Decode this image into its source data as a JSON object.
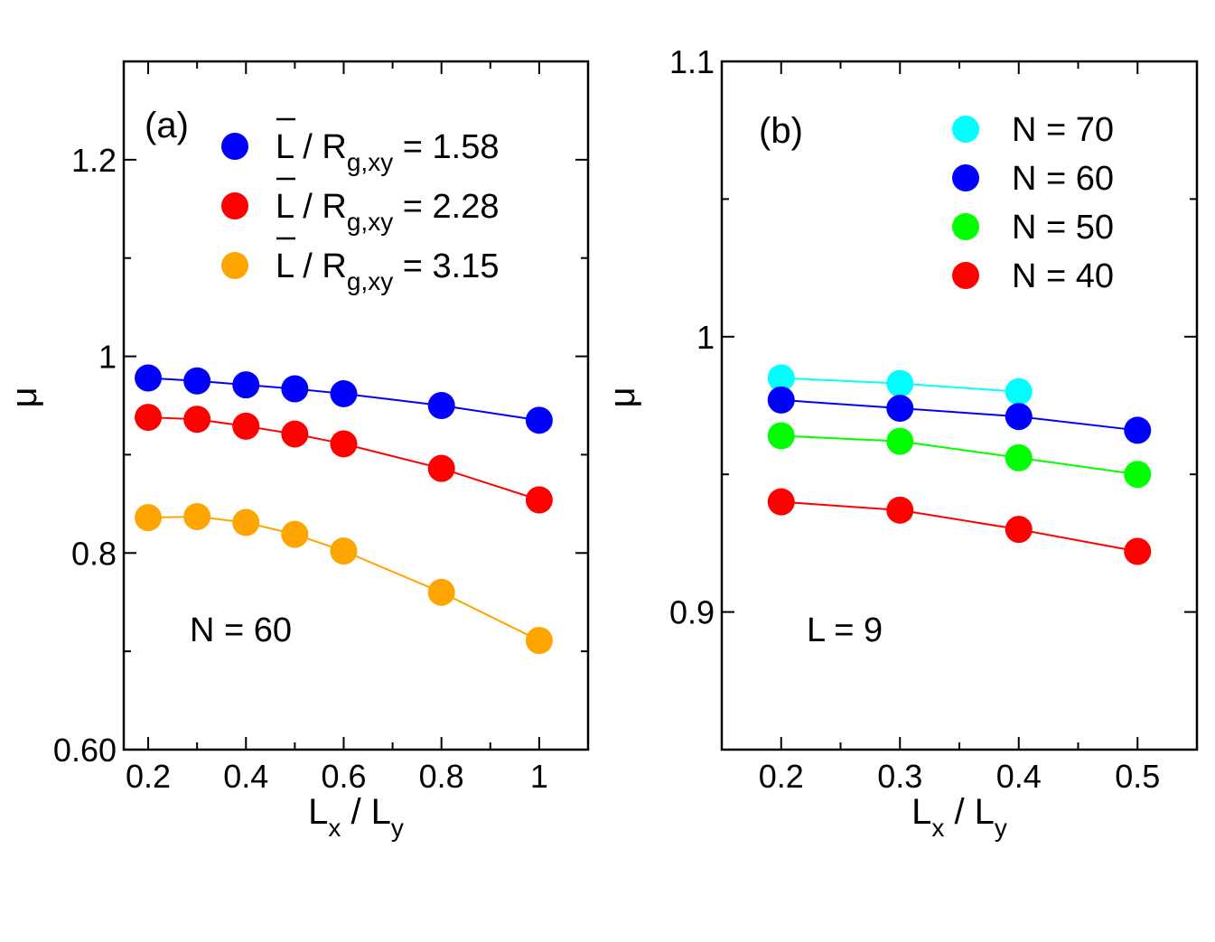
{
  "chart_data": [
    {
      "type": "line",
      "panel_label": "(a)",
      "annotation": "N = 60",
      "xlabel": {
        "main": "L",
        "sub1": "x",
        "sep": " / L",
        "sub2": "y"
      },
      "ylabel": "μ",
      "xlim": [
        0.15,
        1.1
      ],
      "ylim": [
        0.6,
        1.3
      ],
      "xticks": [
        0.2,
        0.4,
        0.6,
        0.8,
        1.0
      ],
      "xtick_labels": [
        "0.2",
        "0.4",
        "0.6",
        "0.8",
        "1"
      ],
      "xminor": [
        0.3,
        0.5,
        0.7,
        0.9
      ],
      "yticks": [
        0.6,
        0.8,
        1.0,
        1.2
      ],
      "ytick_labels": [
        "0.60",
        "0.8",
        "1",
        "1.2"
      ],
      "yminor": [
        0.7,
        0.9,
        1.1
      ],
      "x": [
        0.2,
        0.3,
        0.4,
        0.5,
        0.6,
        0.8,
        1.0
      ],
      "series": [
        {
          "name": "L̄ / R_g,xy = 1.58",
          "legend_main": "L / R",
          "legend_sub": "g,xy",
          "legend_value": " = 1.58",
          "color": "#0000ff",
          "values": [
            0.978,
            0.975,
            0.971,
            0.967,
            0.962,
            0.95,
            0.935
          ]
        },
        {
          "name": "L̄ / R_g,xy = 2.28",
          "legend_main": "L / R",
          "legend_sub": "g,xy",
          "legend_value": " = 2.28",
          "color": "#ff0000",
          "values": [
            0.938,
            0.936,
            0.929,
            0.921,
            0.911,
            0.886,
            0.854
          ]
        },
        {
          "name": "L̄ / R_g,xy = 3.15",
          "legend_main": "L / R",
          "legend_sub": "g,xy",
          "legend_value": " = 3.15",
          "color": "#ffa500",
          "values": [
            0.836,
            0.837,
            0.831,
            0.819,
            0.802,
            0.76,
            0.711
          ]
        }
      ]
    },
    {
      "type": "line",
      "panel_label": "(b)",
      "annotation": "L = 9",
      "xlabel": {
        "main": "L",
        "sub1": "x",
        "sep": " / L",
        "sub2": "y"
      },
      "ylabel": "μ",
      "xlim": [
        0.15,
        0.55
      ],
      "ylim": [
        0.85,
        1.1
      ],
      "xticks": [
        0.2,
        0.3,
        0.4,
        0.5
      ],
      "xtick_labels": [
        "0.2",
        "0.3",
        "0.4",
        "0.5"
      ],
      "xminor": [
        0.25,
        0.35,
        0.45
      ],
      "yticks": [
        0.9,
        1.0,
        1.1
      ],
      "ytick_labels": [
        "0.9",
        "1",
        "1.1"
      ],
      "yminor": [
        0.95,
        1.05
      ],
      "x": [
        0.2,
        0.3,
        0.4,
        0.5
      ],
      "series": [
        {
          "name": "N = 70",
          "color": "#00ffff",
          "values": [
            0.985,
            0.983,
            0.98,
            null
          ]
        },
        {
          "name": "N = 60",
          "color": "#0000ff",
          "values": [
            0.977,
            0.974,
            0.971,
            0.966
          ]
        },
        {
          "name": "N = 50",
          "color": "#00ff00",
          "values": [
            0.964,
            0.962,
            0.956,
            0.95
          ]
        },
        {
          "name": "N = 40",
          "color": "#ff0000",
          "values": [
            0.94,
            0.937,
            0.93,
            0.922
          ]
        }
      ]
    }
  ]
}
